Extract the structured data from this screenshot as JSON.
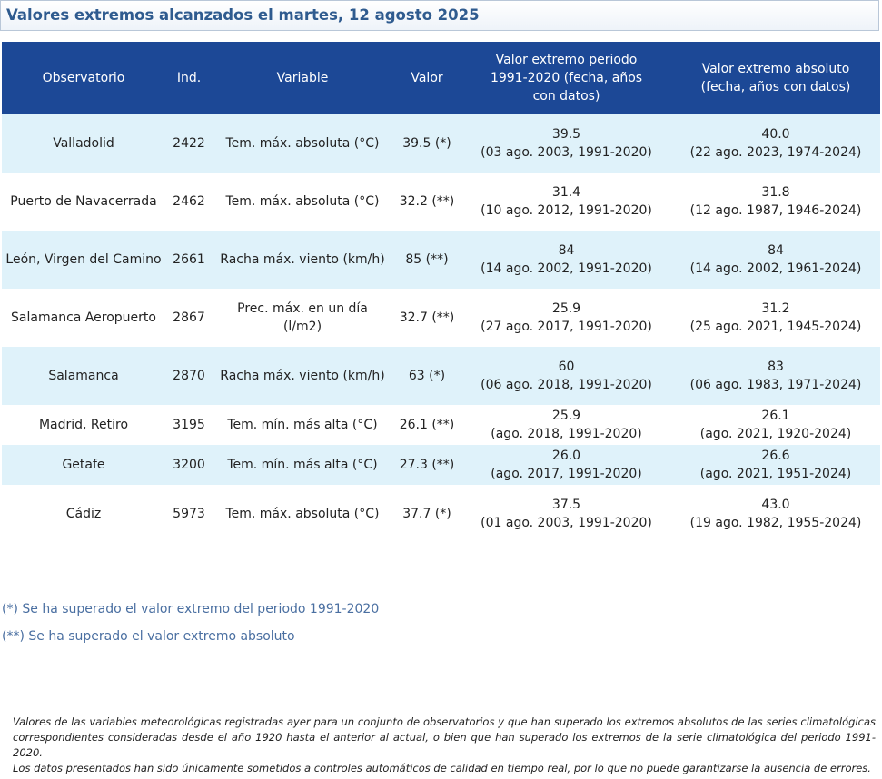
{
  "title": "Valores extremos alcanzados el martes, 12 agosto 2025",
  "table": {
    "headers": {
      "observatorio": "Observatorio",
      "ind": "Ind.",
      "variable": "Variable",
      "valor": "Valor",
      "periodo": "Valor extremo periodo 1991-2020 (fecha, años con datos)",
      "absoluto": "Valor extremo absoluto (fecha, años con datos)"
    },
    "rows": [
      {
        "observatorio": "Valladolid",
        "ind": "2422",
        "variable": "Tem. máx. absoluta (°C)",
        "valor": "39.5 (*)",
        "periodo_valor": "39.5",
        "periodo_fecha": "(03 ago. 2003, 1991-2020)",
        "absoluto_valor": "40.0",
        "absoluto_fecha": "(22 ago. 2023, 1974-2024)"
      },
      {
        "observatorio": "Puerto de Navacerrada",
        "ind": "2462",
        "variable": "Tem. máx. absoluta (°C)",
        "valor": "32.2 (**)",
        "periodo_valor": "31.4",
        "periodo_fecha": "(10 ago. 2012, 1991-2020)",
        "absoluto_valor": "31.8",
        "absoluto_fecha": "(12 ago. 1987, 1946-2024)"
      },
      {
        "observatorio": "León, Virgen del Camino",
        "ind": "2661",
        "variable": "Racha máx. viento (km/h)",
        "valor": "85 (**)",
        "periodo_valor": "84",
        "periodo_fecha": "(14 ago. 2002, 1991-2020)",
        "absoluto_valor": "84",
        "absoluto_fecha": "(14 ago. 2002, 1961-2024)"
      },
      {
        "observatorio": "Salamanca Aeropuerto",
        "ind": "2867",
        "variable": "Prec. máx. en un día (l/m2)",
        "valor": "32.7 (**)",
        "periodo_valor": "25.9",
        "periodo_fecha": "(27 ago. 2017, 1991-2020)",
        "absoluto_valor": "31.2",
        "absoluto_fecha": "(25 ago. 2021, 1945-2024)"
      },
      {
        "observatorio": "Salamanca",
        "ind": "2870",
        "variable": "Racha máx. viento (km/h)",
        "valor": "63 (*)",
        "periodo_valor": "60",
        "periodo_fecha": "(06 ago. 2018, 1991-2020)",
        "absoluto_valor": "83",
        "absoluto_fecha": "(06 ago. 1983, 1971-2024)"
      },
      {
        "observatorio": "Madrid, Retiro",
        "ind": "3195",
        "variable": "Tem. mín. más alta (°C)",
        "valor": "26.1 (**)",
        "periodo_valor": "25.9",
        "periodo_fecha": "(ago. 2018, 1991-2020)",
        "absoluto_valor": "26.1",
        "absoluto_fecha": "(ago. 2021, 1920-2024)"
      },
      {
        "observatorio": "Getafe",
        "ind": "3200",
        "variable": "Tem. mín. más alta (°C)",
        "valor": "27.3 (**)",
        "periodo_valor": "26.0",
        "periodo_fecha": "(ago. 2017, 1991-2020)",
        "absoluto_valor": "26.6",
        "absoluto_fecha": "(ago. 2021, 1951-2024)"
      },
      {
        "observatorio": "Cádiz",
        "ind": "5973",
        "variable": "Tem. máx. absoluta (°C)",
        "valor": "37.7 (*)",
        "periodo_valor": "37.5",
        "periodo_fecha": "(01 ago. 2003, 1991-2020)",
        "absoluto_valor": "43.0",
        "absoluto_fecha": "(19 ago. 1982, 1955-2024)"
      }
    ]
  },
  "legend": {
    "single": "(*) Se ha superado el valor extremo del periodo 1991-2020",
    "double": "(**) Se ha superado el valor extremo absoluto"
  },
  "footnote": {
    "paragraph1": "Valores de las variables meteorológicas registradas ayer para un conjunto de observatorios y que han superado los extremos absolutos de las series climatológicas correspondientes consideradas desde el año 1920 hasta el anterior al actual, o bien que han superado los extremos de la serie climatológica del periodo 1991-2020.",
    "paragraph2": "Los datos presentados han sido únicamente sometidos a controles automáticos de calidad en tiempo real, por lo que no puede garantizarse la ausencia de errores."
  },
  "colors": {
    "header_bg": "#1c4896",
    "row_alt_bg": "#dff2fa",
    "title_color": "#2f5b8f",
    "legend_color": "#4a6fa1"
  }
}
